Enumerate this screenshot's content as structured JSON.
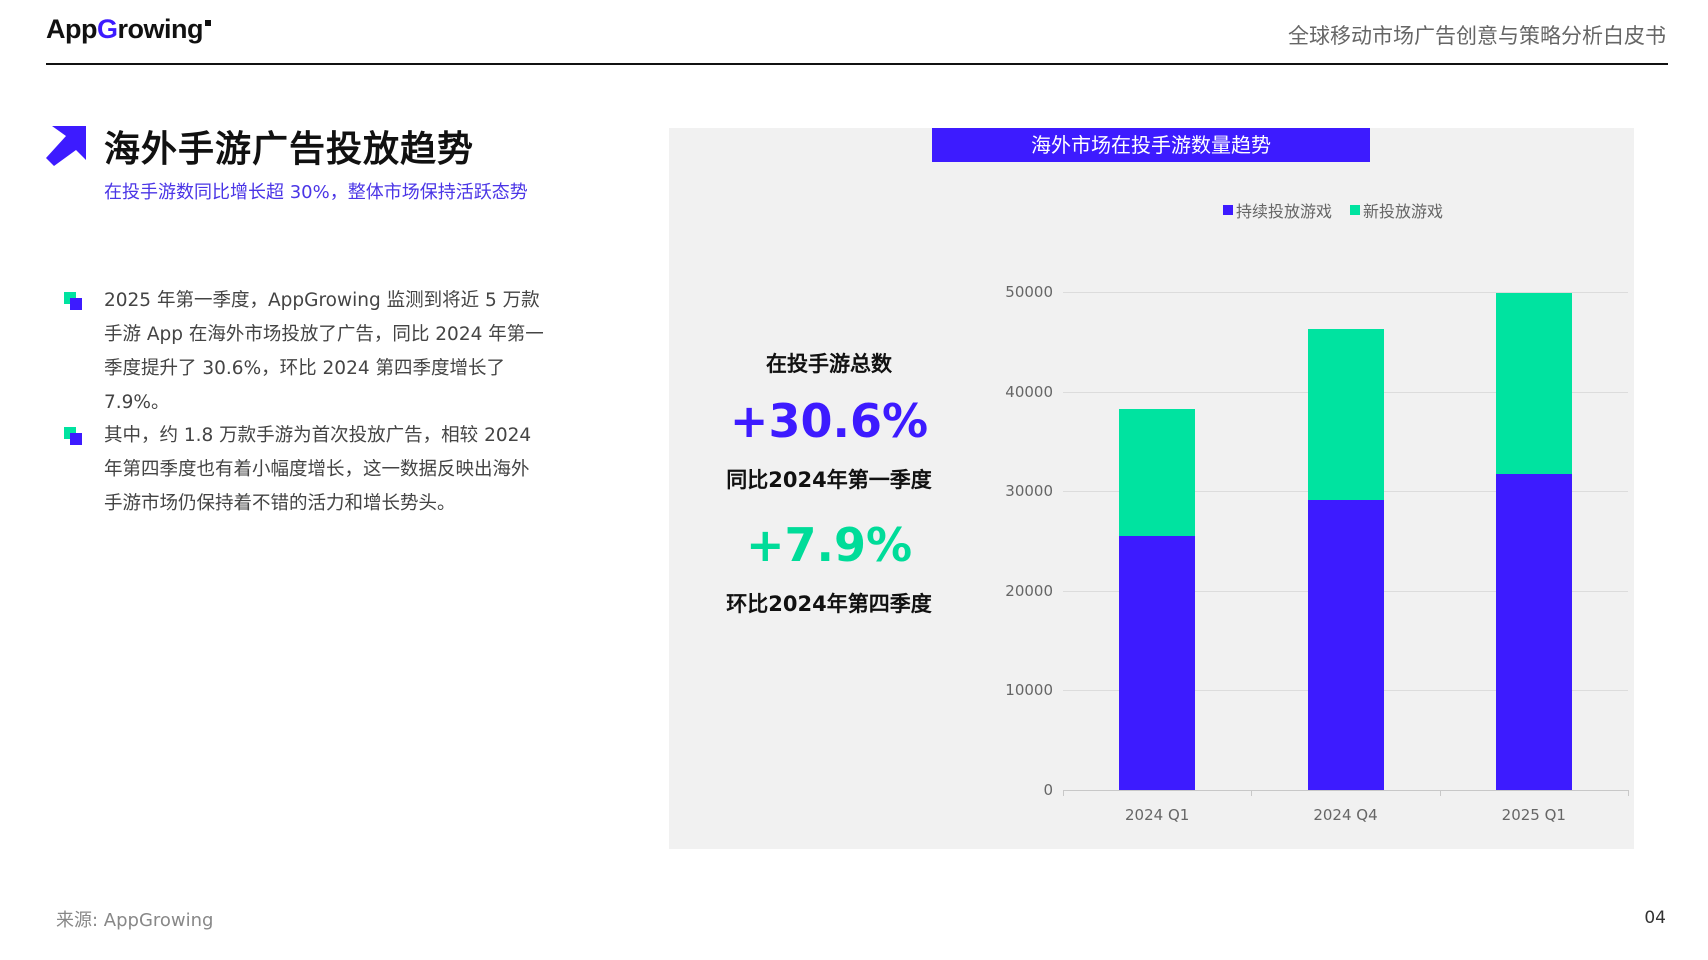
{
  "header": {
    "logo_prefix": "App",
    "logo_g": "G",
    "logo_suffix": "rowing",
    "doc_title": "全球移动市场广告创意与策略分析白皮书"
  },
  "section": {
    "title": "海外手游广告投放趋势",
    "subtitle": "在投手游数同比增长超 30%，整体市场保持活跃态势"
  },
  "bullets": [
    {
      "text": "2025 年第一季度，AppGrowing 监测到将近 5 万款手游 App 在海外市场投放了广告，同比 2024 年第一季度提升了 30.6%，环比 2024 第四季度增长了 7.9%。"
    },
    {
      "text": "其中，约 1.8 万款手游为首次投放广告，相较 2024年第四季度也有着小幅度增长，这一数据反映出海外手游市场仍保持着不错的活力和增长势头。"
    }
  ],
  "stats": {
    "label": "在投手游总数",
    "yoy_value": "+30.6%",
    "yoy_label": "同比2024年第一季度",
    "qoq_value": "+7.9%",
    "qoq_label": "环比2024年第四季度"
  },
  "colors": {
    "primary": "#3d1bff",
    "accent": "#00e3a0"
  },
  "chart_data": {
    "type": "bar",
    "stacked": true,
    "title": "海外市场在投手游数量趋势",
    "categories": [
      "2024 Q1",
      "2024 Q4",
      "2025 Q1"
    ],
    "series": [
      {
        "name": "持续投放游戏",
        "color": "#3d1bff",
        "values": [
          25500,
          29100,
          31700
        ]
      },
      {
        "name": "新投放游戏",
        "color": "#00e3a0",
        "values": [
          12800,
          17200,
          18200
        ]
      }
    ],
    "totals": [
      38300,
      46300,
      49900
    ],
    "xlabel": "",
    "ylabel": "",
    "ylim": [
      0,
      50000
    ],
    "yticks": [
      0,
      10000,
      20000,
      30000,
      40000,
      50000
    ],
    "grid": true,
    "legend_position": "top-right"
  },
  "footer": {
    "source": "来源: AppGrowing",
    "page_number": "04"
  }
}
